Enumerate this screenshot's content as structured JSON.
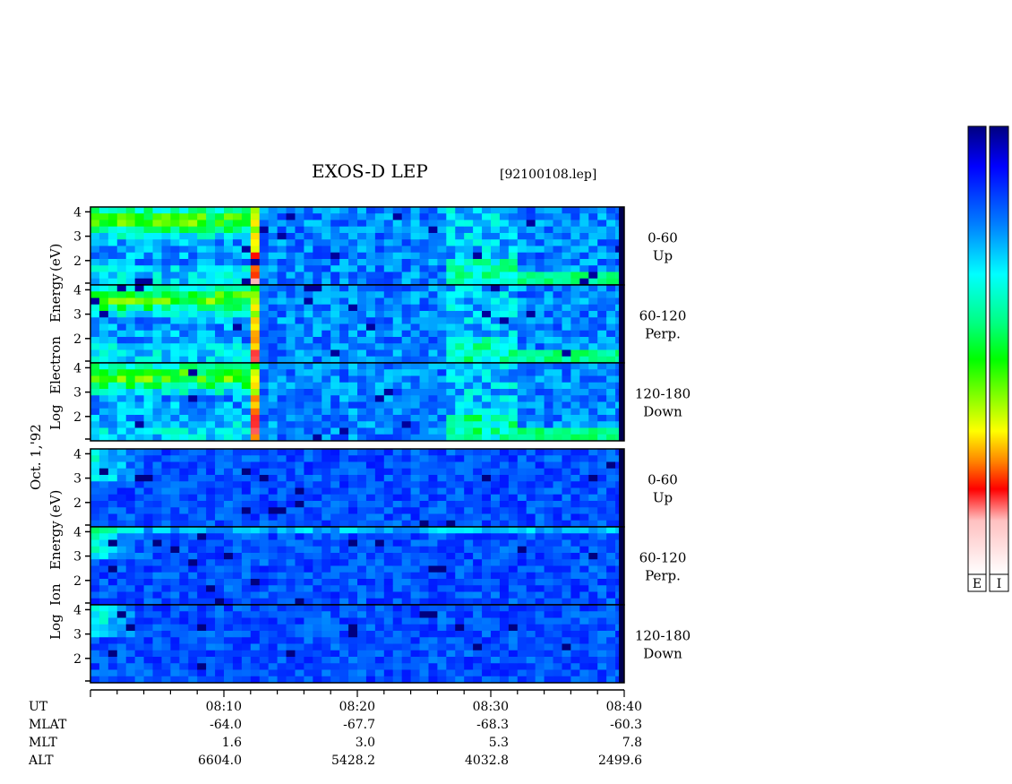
{
  "chart_data": {
    "type": "heatmap",
    "title": "EXOS-D LEP",
    "file_tag": "[92100108.lep]",
    "date_label": "Oct. 1,'92",
    "electron_ylabel": [
      "Log",
      "Electron",
      "Energy",
      "(eV)"
    ],
    "ion_ylabel": [
      "Log",
      "Ion",
      "Energy",
      "(eV)"
    ],
    "yticks": [
      "4",
      "3",
      "2"
    ],
    "ylim": [
      1,
      4.2
    ],
    "panels": [
      {
        "species": "electron",
        "range": "0-60",
        "dir": "Up"
      },
      {
        "species": "electron",
        "range": "60-120",
        "dir": "Perp."
      },
      {
        "species": "electron",
        "range": "120-180",
        "dir": "Down"
      },
      {
        "species": "ion",
        "range": "0-60",
        "dir": "Up"
      },
      {
        "species": "ion",
        "range": "60-120",
        "dir": "Perp."
      },
      {
        "species": "ion",
        "range": "120-180",
        "dir": "Down"
      }
    ],
    "time_ticks": [
      "08:10",
      "08:20",
      "08:30",
      "08:40"
    ],
    "row_labels": [
      "UT",
      "MLAT",
      "MLT",
      "ALT"
    ],
    "mlat": [
      "-64.0",
      "-67.7",
      "-68.3",
      "-60.3"
    ],
    "mlt": [
      "1.6",
      "3.0",
      "5.3",
      "7.8"
    ],
    "alt": [
      "6604.0",
      "5428.2",
      "4032.8",
      "2499.6"
    ],
    "colorbar_labels": [
      "E",
      "I"
    ],
    "colormap": [
      "#000080",
      "#0000ff",
      "#0080ff",
      "#00ffff",
      "#00ff80",
      "#00ff00",
      "#80ff00",
      "#ffff00",
      "#ff8000",
      "#ff0000",
      "#ffc0c0",
      "#ffffff"
    ]
  }
}
